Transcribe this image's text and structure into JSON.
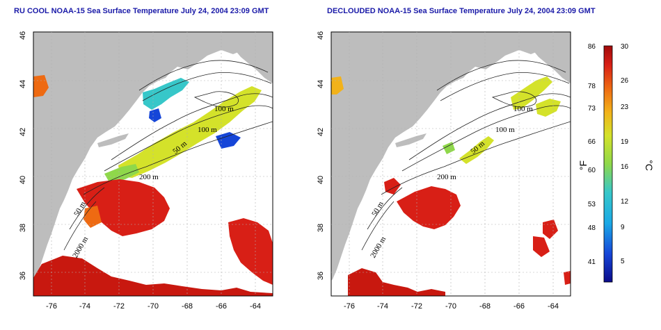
{
  "panels": [
    {
      "title": "RU COOL NOAA-15 Sea Surface Temperature July 24, 2004 23:09 GMT",
      "contour_labels": [
        "100 m",
        "100 m",
        "50 m",
        "200 m",
        "50 m",
        "2000 m"
      ]
    },
    {
      "title": "DECLOUDED NOAA-15 Sea Surface Temperature July 24, 2004 23:09 GMT",
      "contour_labels": [
        "100 m",
        "100 m",
        "50 m",
        "200 m",
        "50 m",
        "2000 m"
      ]
    }
  ],
  "axes": {
    "lat_ticks": [
      "36",
      "38",
      "40",
      "42",
      "44",
      "46"
    ],
    "lon_ticks": [
      "-76",
      "-74",
      "-72",
      "-70",
      "-68",
      "-66",
      "-64"
    ]
  },
  "colorbar": {
    "fahrenheit_ticks": [
      "86",
      "78",
      "73",
      "66",
      "60",
      "53",
      "48",
      "41"
    ],
    "celsius_ticks": [
      "30",
      "26",
      "23",
      "19",
      "16",
      "12",
      "9",
      "5"
    ],
    "fahrenheit_unit": "°F",
    "celsius_unit": "°C"
  },
  "colors": {
    "land": "#bdbdbd",
    "title": "#1a1aa8",
    "warm": "#d81f16",
    "hot": "#b50f0f",
    "orange": "#ee6a12",
    "yellow": "#d4e22a",
    "green": "#8fd84a",
    "cyan": "#37c7c9",
    "blue": "#1646d8"
  }
}
